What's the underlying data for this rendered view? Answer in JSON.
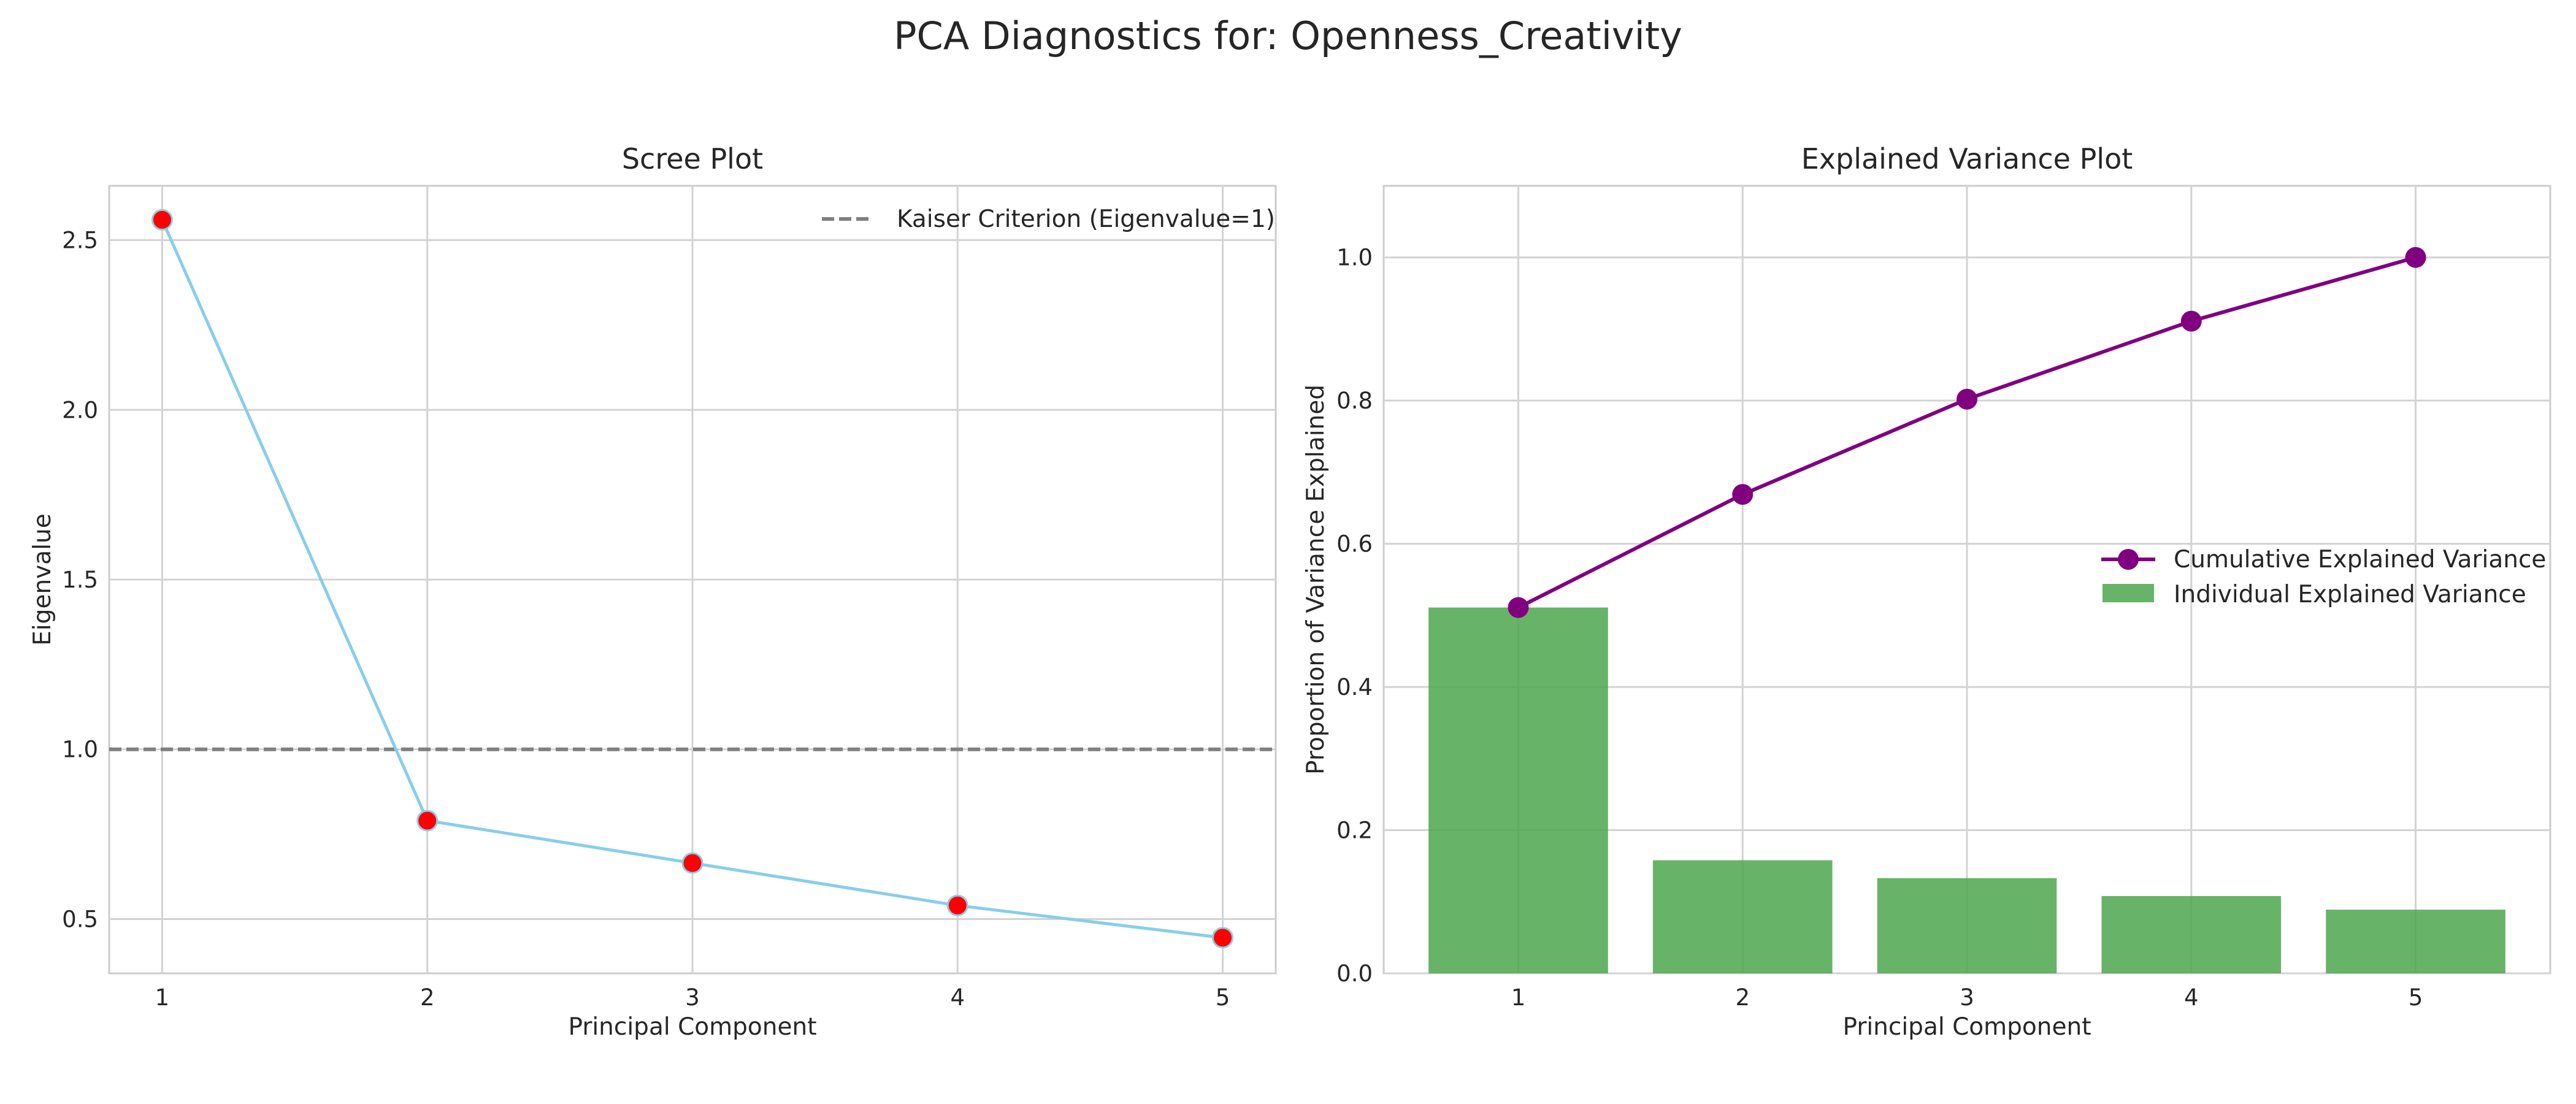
{
  "figure": {
    "title": "PCA Diagnostics for: Openness_Creativity"
  },
  "chart_data": [
    {
      "type": "line",
      "title": "Scree Plot",
      "xlabel": "Principal Component",
      "ylabel": "Eigenvalue",
      "x": [
        1,
        2,
        3,
        4,
        5
      ],
      "xticks": [
        "1",
        "2",
        "3",
        "4",
        "5"
      ],
      "xlim": [
        0.8,
        5.2
      ],
      "ylim": [
        0.34,
        2.66
      ],
      "yticks": [
        "0.5",
        "1.0",
        "1.5",
        "2.0",
        "2.5"
      ],
      "grid": true,
      "legend_position": "top-right",
      "series": [
        {
          "values": [
            2.56,
            0.79,
            0.665,
            0.54,
            0.445
          ],
          "color": "#87ceeb",
          "marker_color": "#ff0000"
        }
      ],
      "reference_line": {
        "name": "Kaiser Criterion (Eigenvalue=1)",
        "y": 1.0,
        "color": "#808080",
        "style": "dashed"
      }
    },
    {
      "type": "bar",
      "title": "Explained Variance Plot",
      "xlabel": "Principal Component",
      "ylabel": "Proportion of Variance Explained",
      "categories": [
        "1",
        "2",
        "3",
        "4",
        "5"
      ],
      "xlim": [
        0.4,
        5.6
      ],
      "ylim": [
        0,
        1.1
      ],
      "yticks": [
        "0.0",
        "0.2",
        "0.4",
        "0.6",
        "0.8",
        "1.0"
      ],
      "grid": true,
      "legend_position": "center-right",
      "series": [
        {
          "name": "Individual Explained Variance",
          "type": "bar",
          "values": [
            0.511,
            0.158,
            0.133,
            0.108,
            0.089
          ],
          "color": "#4ca64c"
        },
        {
          "name": "Cumulative Explained Variance",
          "type": "line",
          "values": [
            0.511,
            0.669,
            0.802,
            0.911,
            1.0
          ],
          "color": "#800080"
        }
      ]
    }
  ]
}
